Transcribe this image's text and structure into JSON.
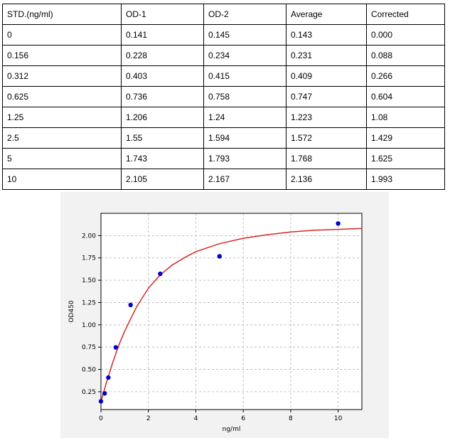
{
  "table": {
    "headers": [
      "STD.(ng/ml)",
      "OD-1",
      "OD-2",
      "Average",
      "Corrected"
    ],
    "rows": [
      [
        "0",
        "0.141",
        "0.145",
        "0.143",
        "0.000"
      ],
      [
        "0.156",
        "0.228",
        "0.234",
        "0.231",
        "0.088"
      ],
      [
        "0.312",
        "0.403",
        "0.415",
        "0.409",
        "0.266"
      ],
      [
        "0.625",
        "0.736",
        "0.758",
        "0.747",
        "0.604"
      ],
      [
        "1.25",
        "1.206",
        "1.24",
        "1.223",
        "1.08"
      ],
      [
        "2.5",
        "1.55",
        "1.594",
        "1.572",
        "1.429"
      ],
      [
        "5",
        "1.743",
        "1.793",
        "1.768",
        "1.625"
      ],
      [
        "10",
        "2.105",
        "2.167",
        "2.136",
        "1.993"
      ]
    ]
  },
  "chart_data": {
    "type": "scatter",
    "xlabel": "ng/ml",
    "ylabel": "OD450",
    "xlim": [
      0,
      11
    ],
    "ylim": [
      0.05,
      2.25
    ],
    "xticks": [
      0,
      2,
      4,
      6,
      8,
      10
    ],
    "xtick_labels": [
      "0",
      "2",
      "4",
      "6",
      "8",
      "10"
    ],
    "yticks": [
      0.25,
      0.5,
      0.75,
      1.0,
      1.25,
      1.5,
      1.75,
      2.0
    ],
    "ytick_labels": [
      "0.25",
      "0.50",
      "0.75",
      "1.00",
      "1.25",
      "1.50",
      "1.75",
      "2.00"
    ],
    "grid": true,
    "series": [
      {
        "kind": "points",
        "color": "#0000cc",
        "x": [
          0,
          0.156,
          0.312,
          0.625,
          1.25,
          2.5,
          5,
          10
        ],
        "y": [
          0.143,
          0.231,
          0.409,
          0.747,
          1.223,
          1.572,
          1.768,
          2.136
        ]
      },
      {
        "kind": "fitted-curve",
        "color": "#d62728",
        "x": [
          0,
          0.25,
          0.5,
          0.75,
          1,
          1.5,
          2,
          2.5,
          3,
          3.5,
          4,
          5,
          6,
          7,
          8,
          9,
          10,
          11
        ],
        "y": [
          0.14,
          0.37,
          0.58,
          0.77,
          0.93,
          1.2,
          1.41,
          1.56,
          1.67,
          1.75,
          1.82,
          1.91,
          1.97,
          2.01,
          2.04,
          2.06,
          2.07,
          2.08
        ]
      }
    ]
  }
}
